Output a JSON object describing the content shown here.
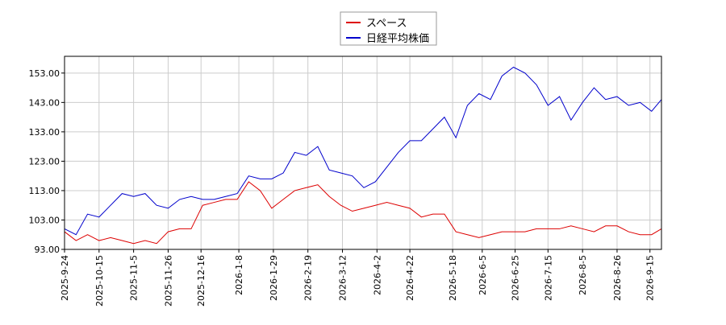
{
  "chart_data": {
    "type": "line",
    "x": [
      "2025-09-24",
      "2025-10-01",
      "2025-10-08",
      "2025-10-15",
      "2025-10-22",
      "2025-10-29",
      "2025-11-05",
      "2025-11-12",
      "2025-11-19",
      "2025-11-26",
      "2025-12-03",
      "2025-12-10",
      "2025-12-17",
      "2025-12-24",
      "2025-12-31",
      "2026-01-07",
      "2026-01-14",
      "2026-01-21",
      "2026-01-28",
      "2026-02-04",
      "2026-02-11",
      "2026-02-18",
      "2026-02-25",
      "2026-03-04",
      "2026-03-11",
      "2026-03-18",
      "2026-03-25",
      "2026-04-01",
      "2026-04-08",
      "2026-04-15",
      "2026-04-22",
      "2026-04-29",
      "2026-05-06",
      "2026-05-13",
      "2026-05-20",
      "2026-05-27",
      "2026-06-03",
      "2026-06-10",
      "2026-06-17",
      "2026-06-24",
      "2026-07-01",
      "2026-07-08",
      "2026-07-15",
      "2026-07-22",
      "2026-07-29",
      "2026-08-05",
      "2026-08-12",
      "2026-08-19",
      "2026-08-26",
      "2026-09-02",
      "2026-09-09",
      "2026-09-16",
      "2026-09-22"
    ],
    "series": [
      {
        "name": "スペース",
        "color": "#dd0000",
        "values": [
          99,
          96,
          98,
          96,
          97,
          96,
          95,
          96,
          95,
          99,
          100,
          100,
          108,
          109,
          110,
          110,
          116,
          113,
          107,
          110,
          113,
          114,
          115,
          111,
          108,
          106,
          107,
          108,
          109,
          108,
          107,
          104,
          105,
          105,
          99,
          98,
          97,
          98,
          99,
          99,
          99,
          100,
          100,
          100,
          101,
          100,
          99,
          101,
          101,
          99,
          98,
          98,
          100
        ]
      },
      {
        "name": "日経平均株価",
        "color": "#0000cc",
        "values": [
          100,
          98,
          105,
          104,
          108,
          112,
          111,
          112,
          108,
          107,
          110,
          111,
          110,
          110,
          111,
          112,
          118,
          117,
          117,
          119,
          126,
          125,
          128,
          120,
          119,
          118,
          114,
          116,
          121,
          126,
          130,
          130,
          134,
          138,
          131,
          142,
          146,
          144,
          152,
          155,
          153,
          149,
          142,
          145,
          137,
          143,
          148,
          144,
          145,
          142,
          143,
          140,
          144
        ]
      }
    ],
    "xlim": [
      "2025-09-24",
      "2026-09-22"
    ],
    "xticks": [
      {
        "value": "2025-09-24",
        "label": "2025-9-24"
      },
      {
        "value": "2025-10-15",
        "label": "2025-10-15"
      },
      {
        "value": "2025-11-05",
        "label": "2025-11-5"
      },
      {
        "value": "2025-11-26",
        "label": "2025-11-26"
      },
      {
        "value": "2025-12-16",
        "label": "2025-12-16"
      },
      {
        "value": "2026-01-08",
        "label": "2026-1-8"
      },
      {
        "value": "2026-01-29",
        "label": "2026-1-29"
      },
      {
        "value": "2026-02-19",
        "label": "2026-2-19"
      },
      {
        "value": "2026-03-12",
        "label": "2026-3-12"
      },
      {
        "value": "2026-04-02",
        "label": "2026-4-2"
      },
      {
        "value": "2026-04-22",
        "label": "2026-4-22"
      },
      {
        "value": "2026-05-18",
        "label": "2026-5-18"
      },
      {
        "value": "2026-06-05",
        "label": "2026-6-5"
      },
      {
        "value": "2026-06-25",
        "label": "2026-6-25"
      },
      {
        "value": "2026-07-15",
        "label": "2026-7-15"
      },
      {
        "value": "2026-08-05",
        "label": "2026-8-5"
      },
      {
        "value": "2026-08-26",
        "label": "2026-8-26"
      },
      {
        "value": "2026-09-15",
        "label": "2026-9-15"
      }
    ],
    "ylim": [
      93,
      158.7
    ],
    "yticks": [
      {
        "value": 93,
        "label": "93.00"
      },
      {
        "value": 103,
        "label": "103.00"
      },
      {
        "value": 113,
        "label": "113.00"
      },
      {
        "value": 123,
        "label": "123.00"
      },
      {
        "value": 133,
        "label": "133.00"
      },
      {
        "value": 143,
        "label": "143.00"
      },
      {
        "value": 153,
        "label": "153.00"
      }
    ],
    "grid": true
  }
}
